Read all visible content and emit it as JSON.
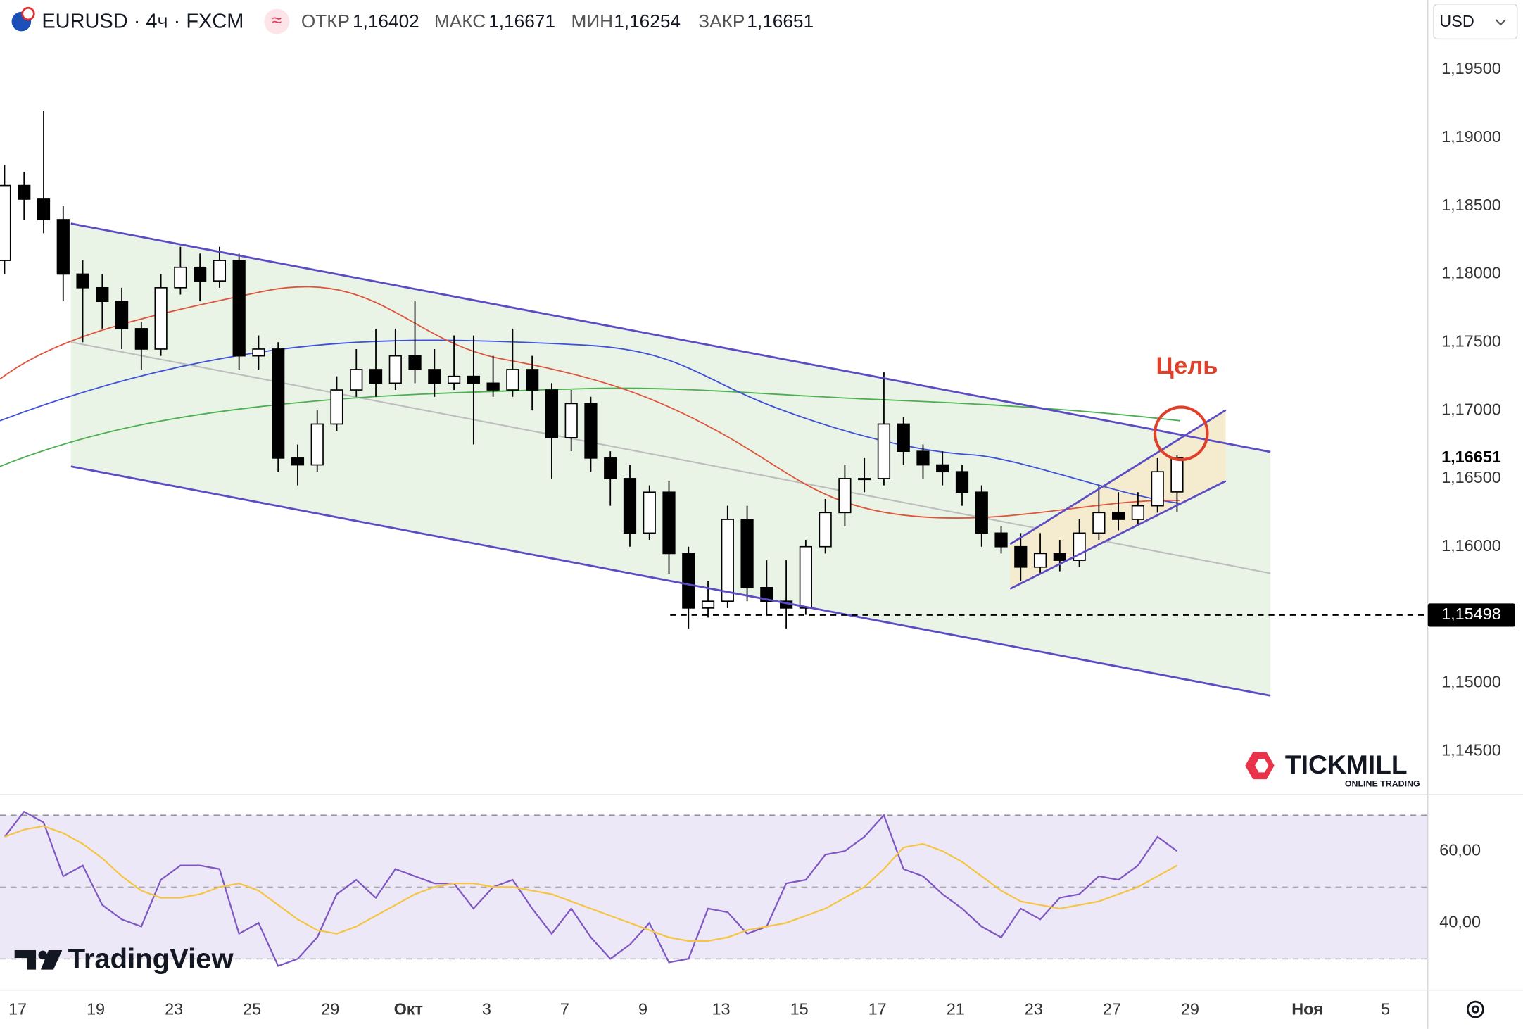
{
  "header": {
    "symbol": "EURUSD · 4ч · FXCM",
    "fields": [
      {
        "label": "ОТКР",
        "value": "1,16402"
      },
      {
        "label": "МАКС",
        "value": "1,16671"
      },
      {
        "label": "МИН",
        "value": "1,16254"
      },
      {
        "label": "ЗАКР",
        "value": "1,16651"
      }
    ]
  },
  "currency": "USD",
  "branding": {
    "broker": "TICKMILL",
    "broker_tagline": "ONLINE TRADING",
    "platform": "TradingView"
  },
  "chart_data": [
    {
      "type": "candlestick",
      "annotation": "Цель",
      "up_color": "#ffffff",
      "down_color": "#000000",
      "x": [
        -2,
        1,
        4,
        7,
        10,
        13,
        16,
        19,
        22,
        25,
        28,
        31,
        34,
        37,
        40,
        43,
        46,
        49,
        52,
        55,
        58,
        61,
        64,
        67,
        70,
        73,
        76,
        79,
        82,
        85,
        88,
        91,
        94,
        97,
        100,
        103,
        106,
        109,
        112,
        115,
        118,
        121,
        124,
        127,
        130,
        133,
        136,
        139,
        142,
        145,
        148,
        151,
        154,
        157,
        160,
        163,
        166,
        169,
        172,
        175,
        178
      ],
      "open": [
        1.181,
        1.1865,
        1.1855,
        1.184,
        1.18,
        1.179,
        1.178,
        1.176,
        1.1745,
        1.179,
        1.1805,
        1.1795,
        1.181,
        1.174,
        1.1745,
        1.1665,
        1.166,
        1.169,
        1.1715,
        1.173,
        1.172,
        1.174,
        1.173,
        1.172,
        1.1725,
        1.172,
        1.1715,
        1.173,
        1.1715,
        1.168,
        1.1705,
        1.1665,
        1.165,
        1.161,
        1.164,
        1.1595,
        1.1555,
        1.156,
        1.162,
        1.157,
        1.156,
        1.1555,
        1.16,
        1.1625,
        1.165,
        1.165,
        1.169,
        1.167,
        1.166,
        1.1655,
        1.164,
        1.161,
        1.16,
        1.1585,
        1.1595,
        1.159,
        1.161,
        1.1625,
        1.162,
        1.163,
        1.16402
      ],
      "high": [
        1.188,
        1.1875,
        1.192,
        1.185,
        1.181,
        1.18,
        1.179,
        1.1765,
        1.18,
        1.182,
        1.1815,
        1.182,
        1.1815,
        1.1755,
        1.175,
        1.1675,
        1.17,
        1.1725,
        1.1745,
        1.176,
        1.176,
        1.178,
        1.1745,
        1.1755,
        1.1755,
        1.174,
        1.176,
        1.174,
        1.172,
        1.1715,
        1.171,
        1.167,
        1.166,
        1.1645,
        1.1648,
        1.16,
        1.1575,
        1.163,
        1.163,
        1.159,
        1.159,
        1.1605,
        1.1635,
        1.166,
        1.1665,
        1.1728,
        1.1695,
        1.1675,
        1.167,
        1.166,
        1.1645,
        1.1615,
        1.161,
        1.161,
        1.1605,
        1.162,
        1.1645,
        1.164,
        1.164,
        1.1665,
        1.16671
      ],
      "low": [
        1.18,
        1.184,
        1.183,
        1.178,
        1.175,
        1.176,
        1.1745,
        1.173,
        1.174,
        1.1785,
        1.178,
        1.179,
        1.173,
        1.173,
        1.1655,
        1.1645,
        1.1655,
        1.1685,
        1.171,
        1.171,
        1.1715,
        1.172,
        1.171,
        1.1715,
        1.1675,
        1.171,
        1.171,
        1.17,
        1.165,
        1.167,
        1.1655,
        1.163,
        1.16,
        1.1605,
        1.158,
        1.154,
        1.1548,
        1.1555,
        1.156,
        1.155,
        1.154,
        1.155,
        1.1595,
        1.1615,
        1.164,
        1.1645,
        1.166,
        1.165,
        1.1645,
        1.163,
        1.16,
        1.1595,
        1.1575,
        1.158,
        1.1582,
        1.1585,
        1.1605,
        1.1612,
        1.1615,
        1.1625,
        1.16254
      ],
      "close": [
        1.1865,
        1.1855,
        1.184,
        1.18,
        1.179,
        1.178,
        1.176,
        1.1745,
        1.179,
        1.1805,
        1.1795,
        1.181,
        1.174,
        1.1745,
        1.1665,
        1.166,
        1.169,
        1.1715,
        1.173,
        1.172,
        1.174,
        1.173,
        1.172,
        1.1725,
        1.172,
        1.1715,
        1.173,
        1.1715,
        1.168,
        1.1705,
        1.1665,
        1.165,
        1.161,
        1.164,
        1.1595,
        1.1555,
        1.156,
        1.162,
        1.157,
        1.156,
        1.1555,
        1.16,
        1.1625,
        1.165,
        1.165,
        1.169,
        1.167,
        1.166,
        1.1655,
        1.164,
        1.161,
        1.16,
        1.1585,
        1.1595,
        1.159,
        1.161,
        1.1625,
        1.162,
        1.163,
        1.1655,
        1.16651
      ],
      "xlim": [
        -2.7,
        216.5
      ],
      "xticks": [
        {
          "value": 0,
          "label": "17"
        },
        {
          "value": 12,
          "label": "19"
        },
        {
          "value": 24,
          "label": "23"
        },
        {
          "value": 36,
          "label": "25"
        },
        {
          "value": 48,
          "label": "29"
        },
        {
          "value": 60,
          "label": "Окт"
        },
        {
          "value": 72,
          "label": "3"
        },
        {
          "value": 84,
          "label": "7"
        },
        {
          "value": 96,
          "label": "9"
        },
        {
          "value": 108,
          "label": "13"
        },
        {
          "value": 120,
          "label": "15"
        },
        {
          "value": 132,
          "label": "17"
        },
        {
          "value": 144,
          "label": "21"
        },
        {
          "value": 156,
          "label": "23"
        },
        {
          "value": 168,
          "label": "27"
        },
        {
          "value": 180,
          "label": "29"
        },
        {
          "value": 198,
          "label": "Ноя"
        },
        {
          "value": 210,
          "label": "5"
        }
      ],
      "ylim": [
        1.1418,
        1.2001
      ],
      "yticks": [
        {
          "value": 1.145,
          "label": "1,14500"
        },
        {
          "value": 1.15,
          "label": "1,15000"
        },
        {
          "value": 1.155,
          "label": "1,15500"
        },
        {
          "value": 1.16,
          "label": "1,16000"
        },
        {
          "value": 1.165,
          "label": "1,16500"
        },
        {
          "value": 1.17,
          "label": "1,17000"
        },
        {
          "value": 1.175,
          "label": "1,17500"
        },
        {
          "value": 1.18,
          "label": "1,18000"
        },
        {
          "value": 1.185,
          "label": "1,18500"
        },
        {
          "value": 1.19,
          "label": "1,19000"
        },
        {
          "value": 1.195,
          "label": "1,19500"
        }
      ],
      "last": {
        "value": 1.16651,
        "label": "1,16651"
      },
      "level": {
        "value": 1.15498,
        "label": "1,15498"
      }
    },
    {
      "type": "line",
      "x": [
        -2,
        1,
        4,
        7,
        10,
        13,
        16,
        19,
        22,
        25,
        28,
        31,
        34,
        37,
        40,
        43,
        46,
        49,
        52,
        55,
        58,
        61,
        64,
        67,
        70,
        73,
        76,
        79,
        82,
        85,
        88,
        91,
        94,
        97,
        100,
        103,
        106,
        109,
        112,
        115,
        118,
        121,
        124,
        127,
        130,
        133,
        136,
        139,
        142,
        145,
        148,
        151,
        154,
        157,
        160,
        163,
        166,
        169,
        172,
        175,
        178
      ],
      "series": [
        {
          "color": "#7e57c2",
          "values": [
            64,
            71,
            68,
            53,
            56,
            45,
            41,
            39,
            52,
            56,
            56,
            55,
            37,
            40,
            28,
            30,
            36,
            48,
            52,
            47,
            55,
            53,
            51,
            51,
            44,
            50,
            52,
            44,
            37,
            44,
            36,
            30,
            34,
            40,
            29,
            30,
            44,
            43,
            37,
            39,
            51,
            52,
            59,
            60,
            64,
            70,
            55,
            53,
            48,
            44,
            39,
            36,
            44,
            41,
            47,
            48,
            53,
            52,
            56,
            64,
            60
          ]
        },
        {
          "color": "#f5c542",
          "values": [
            64,
            66,
            67,
            65,
            62,
            58,
            53,
            49,
            47,
            47,
            48,
            50,
            51,
            49,
            45,
            41,
            38,
            37,
            39,
            42,
            45,
            48,
            50,
            51,
            51,
            50,
            50,
            49,
            48,
            46,
            44,
            42,
            40,
            38,
            36,
            35,
            35,
            36,
            38,
            39,
            40,
            42,
            44,
            47,
            50,
            55,
            61,
            62,
            60,
            57,
            53,
            49,
            46,
            45,
            44,
            45,
            46,
            48,
            50,
            53,
            56
          ]
        }
      ],
      "ylim": [
        21.6,
        75.7
      ],
      "yticks": [
        {
          "value": 40,
          "label": "40,00"
        },
        {
          "value": 60,
          "label": "60,00"
        }
      ]
    }
  ]
}
